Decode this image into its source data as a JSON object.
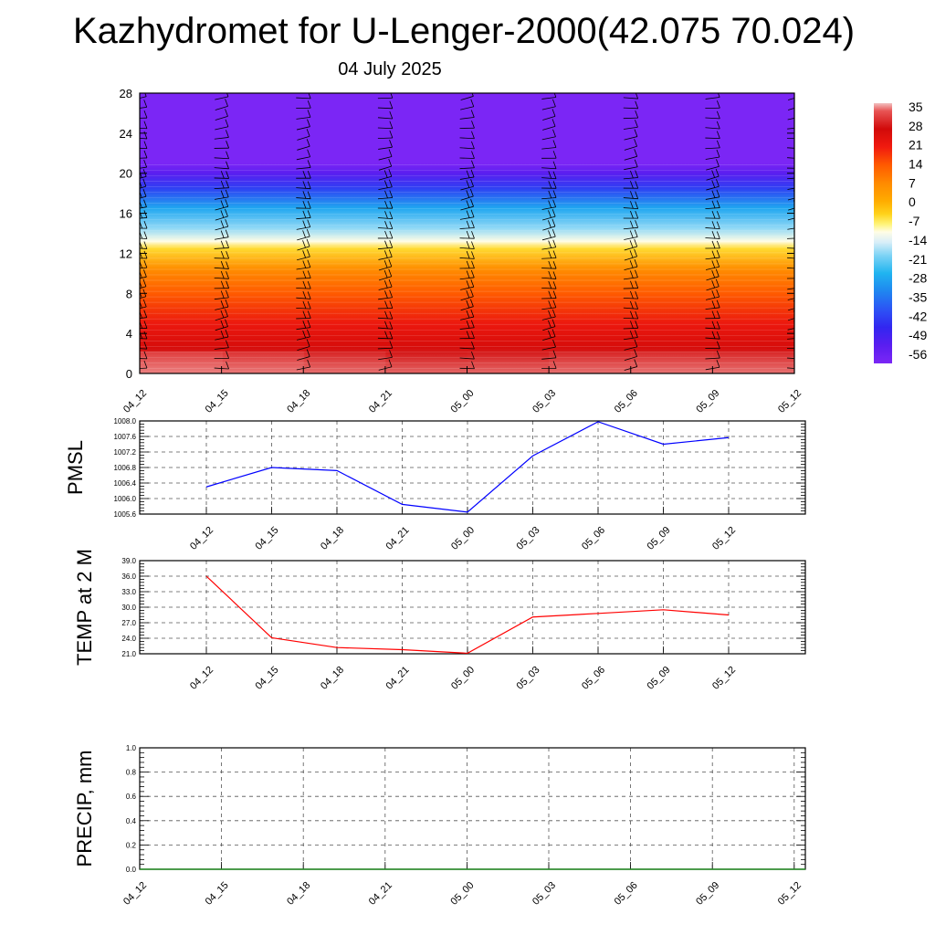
{
  "title": "Kazhydromet for U-Lenger-2000(42.075 70.024)",
  "subtitle": "04 July 2025",
  "chart_data": [
    {
      "id": "cross-section",
      "type": "heatmap",
      "description": "temperature cross-section with wind barbs",
      "x_ticks": [
        "04_12",
        "04_15",
        "04_18",
        "04_21",
        "05_00",
        "05_03",
        "05_06",
        "05_09",
        "05_12"
      ],
      "y_ticks": [
        0,
        4,
        8,
        12,
        16,
        20,
        24,
        28
      ],
      "ylim": [
        0,
        28
      ],
      "colorbar": {
        "labels": [
          35,
          28,
          21,
          14,
          7,
          0,
          -7,
          -14,
          -21,
          -28,
          -35,
          -42,
          -49,
          -56
        ],
        "range": [
          -63,
          38
        ]
      },
      "temperature_profile": [
        {
          "y": 0,
          "value": 30
        },
        {
          "y": 2,
          "value": 28
        },
        {
          "y": 5,
          "value": 22
        },
        {
          "y": 8,
          "value": 14
        },
        {
          "y": 10.5,
          "value": 6
        },
        {
          "y": 12.5,
          "value": -6
        },
        {
          "y": 13.2,
          "value": -12
        },
        {
          "y": 14.5,
          "value": -20
        },
        {
          "y": 16.5,
          "value": -30
        },
        {
          "y": 18.5,
          "value": -45
        },
        {
          "y": 20,
          "value": -56
        },
        {
          "y": 21,
          "value": -63
        },
        {
          "y": 28,
          "value": -63
        }
      ],
      "surface_values": [
        36,
        34,
        32,
        29,
        27,
        30,
        31,
        32,
        30
      ]
    },
    {
      "id": "pmsl",
      "type": "line",
      "ylabel": "PMSL",
      "x_ticks": [
        "04_12",
        "04_15",
        "04_18",
        "04_21",
        "05_00",
        "05_03",
        "05_06",
        "05_09",
        "05_12"
      ],
      "y_ticks": [
        "1005.6",
        "1006.0",
        "1006.4",
        "1006.8",
        "1007.2",
        "1007.6",
        "1008.0"
      ],
      "ylim": [
        1005.6,
        1008.0
      ],
      "grid": true,
      "series": [
        {
          "color": "#0000ff",
          "values": [
            1006.3,
            1006.8,
            1006.72,
            1005.85,
            1005.65,
            1007.1,
            1007.98,
            1007.4,
            1007.57
          ]
        }
      ]
    },
    {
      "id": "temp2m",
      "type": "line",
      "ylabel": "TEMP at 2 M",
      "x_ticks": [
        "04_12",
        "04_15",
        "04_18",
        "04_21",
        "05_00",
        "05_03",
        "05_06",
        "05_09",
        "05_12"
      ],
      "y_ticks": [
        "21.0",
        "24.0",
        "27.0",
        "30.0",
        "33.0",
        "36.0",
        "39.0"
      ],
      "ylim": [
        21,
        39
      ],
      "grid": true,
      "series": [
        {
          "color": "#ff0000",
          "values": [
            36.0,
            24.1,
            22.2,
            21.8,
            21.1,
            28.1,
            28.8,
            29.5,
            28.5
          ]
        }
      ]
    },
    {
      "id": "precip",
      "type": "line",
      "ylabel": "PRECIP, mm",
      "x_ticks": [
        "04_12",
        "04_15",
        "04_18",
        "04_21",
        "05_00",
        "05_03",
        "05_06",
        "05_09",
        "05_12"
      ],
      "y_ticks": [
        "0.0",
        "0.2",
        "0.4",
        "0.6",
        "0.8",
        "1.0"
      ],
      "ylim": [
        0,
        1
      ],
      "grid": true,
      "series": [
        {
          "color": "#228b22",
          "values": [
            0,
            0,
            0,
            0,
            0,
            0,
            0,
            0,
            0
          ]
        }
      ]
    }
  ]
}
